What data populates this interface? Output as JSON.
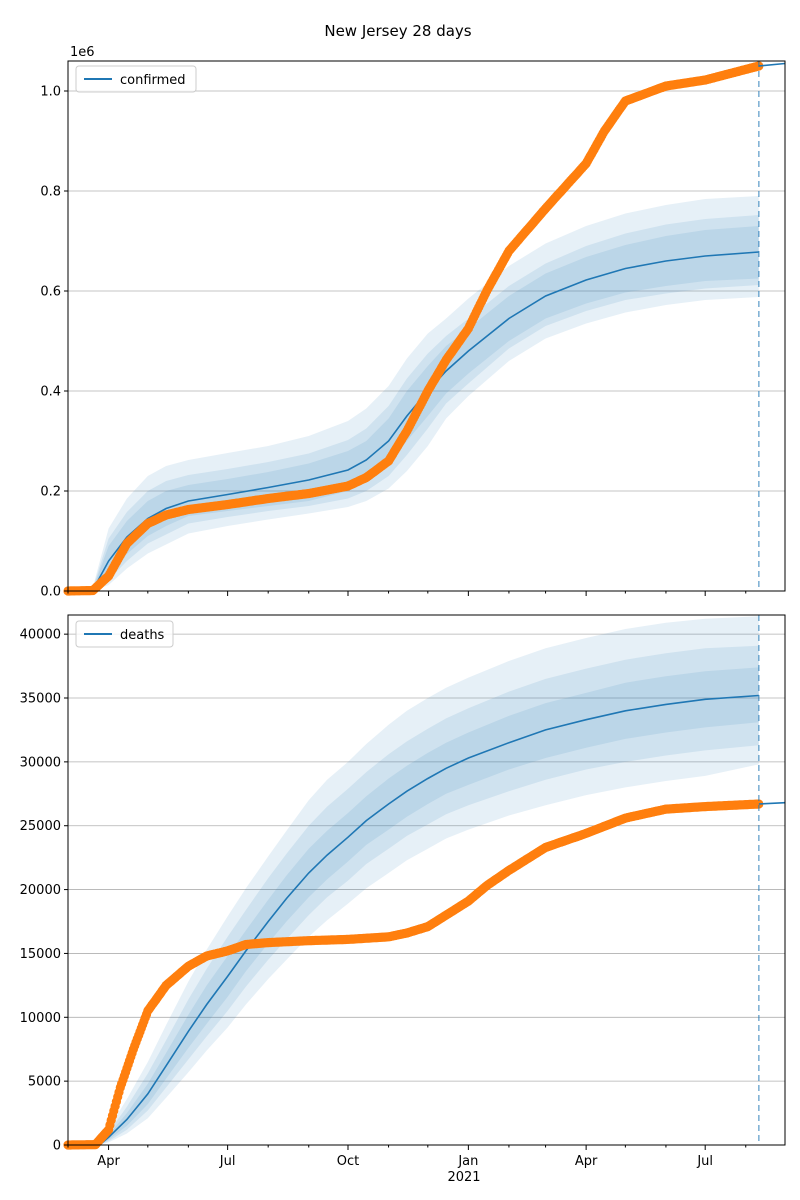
{
  "title": "New Jersey 28 days",
  "chart_data": [
    {
      "type": "line",
      "name": "confirmed-panel",
      "legend": "confirmed",
      "legend_position": "top-left",
      "grid": "horizontal",
      "offset_label": "1e6",
      "ylim": [
        0,
        1.06
      ],
      "yticks": [
        0,
        0.2,
        0.4,
        0.6,
        0.8,
        1.0
      ],
      "ytick_labels": [
        "0.0",
        "0.2",
        "0.4",
        "0.6",
        "0.8",
        "1.0"
      ],
      "xlim": [
        "2020-03-01",
        "2021-08-31"
      ],
      "vline_date": "2021-08-11",
      "colors": {
        "model": "#1f77b4",
        "observed": "#ff7f0e",
        "band": "#1f77b4"
      },
      "model": {
        "dates": [
          "2020-03-10",
          "2020-03-20",
          "2020-04-01",
          "2020-04-15",
          "2020-05-01",
          "2020-05-15",
          "2020-06-01",
          "2020-07-01",
          "2020-08-01",
          "2020-09-01",
          "2020-10-01",
          "2020-10-15",
          "2020-11-01",
          "2020-11-15",
          "2020-12-01",
          "2020-12-15",
          "2021-01-01",
          "2021-02-01",
          "2021-03-01",
          "2021-04-01",
          "2021-05-01",
          "2021-06-01",
          "2021-07-01",
          "2021-08-11"
        ],
        "median": [
          0.0,
          0.002,
          0.06,
          0.108,
          0.145,
          0.165,
          0.18,
          0.193,
          0.207,
          0.222,
          0.242,
          0.262,
          0.3,
          0.35,
          0.4,
          0.44,
          0.48,
          0.545,
          0.59,
          0.622,
          0.645,
          0.66,
          0.67,
          0.678
        ],
        "bands": [
          {
            "low": [
              0,
              0,
              0.03,
              0.074,
              0.11,
              0.13,
              0.15,
              0.16,
              0.17,
              0.18,
              0.2,
              0.22,
              0.255,
              0.3,
              0.35,
              0.395,
              0.435,
              0.5,
              0.545,
              0.575,
              0.597,
              0.61,
              0.62,
              0.625
            ],
            "high": [
              0,
              0.004,
              0.09,
              0.14,
              0.18,
              0.2,
              0.212,
              0.224,
              0.238,
              0.255,
              0.28,
              0.3,
              0.345,
              0.4,
              0.45,
              0.49,
              0.525,
              0.59,
              0.635,
              0.668,
              0.692,
              0.71,
              0.722,
              0.73
            ]
          },
          {
            "low": [
              0,
              0,
              0.022,
              0.06,
              0.095,
              0.113,
              0.135,
              0.148,
              0.16,
              0.17,
              0.185,
              0.2,
              0.23,
              0.272,
              0.325,
              0.375,
              0.415,
              0.485,
              0.53,
              0.56,
              0.582,
              0.595,
              0.605,
              0.612
            ],
            "high": [
              0,
              0.006,
              0.105,
              0.158,
              0.2,
              0.22,
              0.232,
              0.244,
              0.258,
              0.275,
              0.302,
              0.325,
              0.37,
              0.425,
              0.475,
              0.51,
              0.545,
              0.61,
              0.655,
              0.69,
              0.715,
              0.733,
              0.744,
              0.752
            ]
          },
          {
            "low": [
              0,
              0,
              0.012,
              0.045,
              0.075,
              0.093,
              0.115,
              0.13,
              0.143,
              0.155,
              0.168,
              0.18,
              0.205,
              0.24,
              0.29,
              0.345,
              0.39,
              0.46,
              0.505,
              0.535,
              0.557,
              0.572,
              0.582,
              0.588
            ],
            "high": [
              0,
              0.008,
              0.125,
              0.185,
              0.23,
              0.25,
              0.262,
              0.276,
              0.29,
              0.31,
              0.34,
              0.365,
              0.41,
              0.465,
              0.515,
              0.545,
              0.585,
              0.65,
              0.695,
              0.73,
              0.755,
              0.772,
              0.784,
              0.79
            ]
          }
        ]
      },
      "observed": {
        "dates": [
          "2020-03-01",
          "2020-03-20",
          "2020-04-01",
          "2020-04-15",
          "2020-05-01",
          "2020-05-15",
          "2020-06-01",
          "2020-07-01",
          "2020-08-01",
          "2020-09-01",
          "2020-10-01",
          "2020-10-15",
          "2020-11-01",
          "2020-11-15",
          "2020-12-01",
          "2020-12-15",
          "2021-01-01",
          "2021-01-15",
          "2021-02-01",
          "2021-03-01",
          "2021-04-01",
          "2021-04-15",
          "2021-05-01",
          "2021-06-01",
          "2021-07-01",
          "2021-08-11"
        ],
        "values": [
          0,
          0.001,
          0.03,
          0.095,
          0.135,
          0.152,
          0.163,
          0.173,
          0.185,
          0.195,
          0.21,
          0.227,
          0.26,
          0.32,
          0.4,
          0.462,
          0.525,
          0.6,
          0.68,
          0.765,
          0.855,
          0.92,
          0.98,
          1.01,
          1.022,
          1.05
        ]
      },
      "forecast": {
        "dates": [
          "2021-08-11",
          "2021-08-31"
        ],
        "values": [
          1.05,
          1.055
        ]
      }
    },
    {
      "type": "line",
      "name": "deaths-panel",
      "legend": "deaths",
      "legend_position": "top-left",
      "grid": "horizontal",
      "ylim": [
        0,
        41500
      ],
      "yticks": [
        0,
        5000,
        10000,
        15000,
        20000,
        25000,
        30000,
        35000,
        40000
      ],
      "ytick_labels": [
        "0",
        "5000",
        "10000",
        "15000",
        "20000",
        "25000",
        "30000",
        "35000",
        "40000"
      ],
      "xlim": [
        "2020-03-01",
        "2021-08-31"
      ],
      "xtick_dates": [
        "2020-04-01",
        "2020-07-01",
        "2020-10-01",
        "2021-01-01",
        "2021-04-01",
        "2021-07-01"
      ],
      "xtick_labels": [
        "Apr",
        "Jul",
        "Oct",
        "Jan",
        "Apr",
        "Jul"
      ],
      "year_label": "2021",
      "vline_date": "2021-08-11",
      "colors": {
        "model": "#1f77b4",
        "observed": "#ff7f0e",
        "band": "#1f77b4"
      },
      "model": {
        "dates": [
          "2020-03-25",
          "2020-04-01",
          "2020-04-15",
          "2020-05-01",
          "2020-05-15",
          "2020-06-01",
          "2020-06-15",
          "2020-07-01",
          "2020-07-15",
          "2020-08-01",
          "2020-08-15",
          "2020-09-01",
          "2020-09-15",
          "2020-10-01",
          "2020-10-15",
          "2020-11-01",
          "2020-11-15",
          "2020-12-01",
          "2020-12-15",
          "2021-01-01",
          "2021-02-01",
          "2021-03-01",
          "2021-04-01",
          "2021-05-01",
          "2021-06-01",
          "2021-07-01",
          "2021-08-11"
        ],
        "median": [
          0,
          600,
          2000,
          4000,
          6200,
          8900,
          11000,
          13200,
          15200,
          17500,
          19300,
          21300,
          22700,
          24100,
          25400,
          26700,
          27700,
          28700,
          29500,
          30300,
          31500,
          32500,
          33300,
          34000,
          34500,
          34900,
          35200
        ],
        "bands": [
          {
            "low": [
              0,
              400,
              1500,
              3200,
              5200,
              7600,
              9500,
              11600,
              13600,
              15800,
              17500,
              19400,
              20800,
              22200,
              23500,
              24700,
              25700,
              26700,
              27500,
              28200,
              29400,
              30300,
              31100,
              31800,
              32300,
              32700,
              33100
            ],
            "high": [
              0,
              800,
              2500,
              4800,
              7200,
              10200,
              12500,
              14800,
              16800,
              19200,
              21100,
              23200,
              24600,
              26000,
              27300,
              28700,
              29700,
              30700,
              31500,
              32300,
              33600,
              34600,
              35400,
              36200,
              36700,
              37100,
              37400
            ]
          },
          {
            "low": [
              0,
              300,
              1200,
              2700,
              4500,
              6700,
              8500,
              10500,
              12400,
              14500,
              16100,
              18000,
              19400,
              20700,
              22000,
              23200,
              24200,
              25100,
              25900,
              26600,
              27700,
              28600,
              29400,
              30000,
              30500,
              30900,
              31300
            ],
            "high": [
              0,
              1000,
              3000,
              5600,
              8200,
              11400,
              13800,
              16300,
              18400,
              20900,
              22800,
              25000,
              26500,
              27900,
              29200,
              30600,
              31600,
              32600,
              33400,
              34200,
              35500,
              36500,
              37300,
              38000,
              38500,
              38900,
              39100
            ]
          },
          {
            "low": [
              0,
              200,
              900,
              2100,
              3700,
              5700,
              7400,
              9200,
              11000,
              13000,
              14500,
              16300,
              17600,
              18900,
              20100,
              21300,
              22300,
              23200,
              24000,
              24700,
              25800,
              26600,
              27400,
              28000,
              28500,
              28900,
              29800
            ],
            "high": [
              0,
              1300,
              3600,
              6500,
              9400,
              12800,
              15300,
              17900,
              20100,
              22600,
              24600,
              27000,
              28600,
              30000,
              31400,
              32900,
              34000,
              35000,
              35800,
              36600,
              37900,
              38900,
              39700,
              40400,
              40900,
              41200,
              41400
            ]
          }
        ]
      },
      "observed": {
        "dates": [
          "2020-03-01",
          "2020-03-22",
          "2020-04-01",
          "2020-04-10",
          "2020-04-20",
          "2020-05-01",
          "2020-05-15",
          "2020-06-01",
          "2020-06-15",
          "2020-07-01",
          "2020-07-15",
          "2020-08-01",
          "2020-09-01",
          "2020-10-01",
          "2020-11-01",
          "2020-11-15",
          "2020-12-01",
          "2020-12-15",
          "2021-01-01",
          "2021-01-15",
          "2021-02-01",
          "2021-03-01",
          "2021-04-01",
          "2021-05-01",
          "2021-06-01",
          "2021-07-01",
          "2021-08-11"
        ],
        "values": [
          0,
          30,
          1200,
          4500,
          7500,
          10500,
          12500,
          14000,
          14800,
          15200,
          15700,
          15850,
          16000,
          16100,
          16300,
          16600,
          17100,
          18000,
          19100,
          20300,
          21500,
          23300,
          24400,
          25600,
          26300,
          26500,
          26700
        ]
      },
      "forecast": {
        "dates": [
          "2021-08-11",
          "2021-08-31"
        ],
        "values": [
          26700,
          26800
        ]
      }
    }
  ]
}
